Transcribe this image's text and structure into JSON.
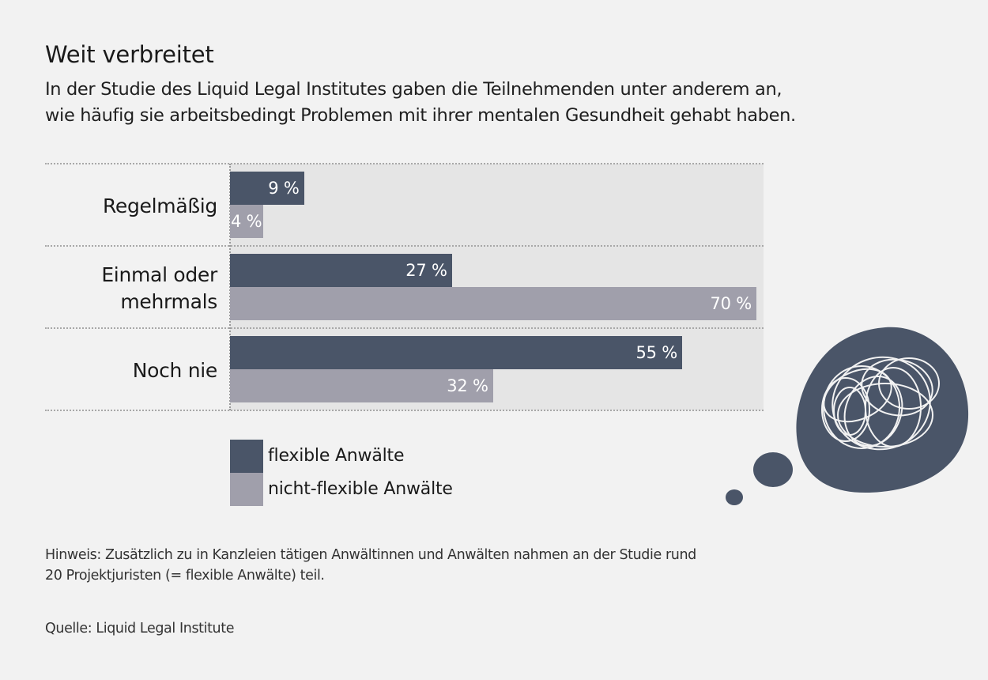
{
  "header": {
    "title": "Weit verbreitet",
    "subtitle_line1": "In der Studie des Liquid Legal Institutes gaben die Teilnehmenden unter anderem an,",
    "subtitle_line2": "wie häufig sie arbeitsbedingt Problemen mit ihrer mentalen Gesundheit gehabt haben."
  },
  "colors": {
    "flexible": "#4a5568",
    "non_flexible": "#a09fab",
    "plot_background": "#e5e5e5",
    "page_background": "#f2f2f2",
    "illustration": "#4a5568"
  },
  "chart_data": {
    "type": "bar",
    "orientation": "horizontal",
    "title": "Weit verbreitet",
    "xlabel": "",
    "ylabel": "",
    "unit": "%",
    "categories": [
      "Regelmäßig",
      "Einmal oder mehrmals",
      "Noch nie"
    ],
    "category_lines": [
      [
        "Regelmäßig"
      ],
      [
        "Einmal oder",
        "mehrmals"
      ],
      [
        "Noch nie"
      ]
    ],
    "series": [
      {
        "name": "flexible Anwälte",
        "values": [
          9,
          27,
          55
        ],
        "labels": [
          "9 %",
          "27 %",
          "55 %"
        ]
      },
      {
        "name": "nicht-flexible Anwälte",
        "values": [
          4,
          70,
          32
        ],
        "labels": [
          "4 %",
          "70 %",
          "32 %"
        ]
      }
    ],
    "xlim": [
      0,
      70
    ],
    "grid": false,
    "legend_position": "bottom-left"
  },
  "legend": {
    "items": [
      "flexible Anwälte",
      "nicht-flexible Anwälte"
    ]
  },
  "footer": {
    "note_line1": "Hinweis: Zusätzlich zu in Kanzleien tätigen Anwältinnen und Anwälten nahmen an der Studie rund",
    "note_line2": "20 Projektjuristen (= flexible Anwälte) teil.",
    "source": "Quelle: Liquid Legal Institute"
  },
  "illustration": {
    "icon": "thought-bubble-scribble-icon"
  }
}
